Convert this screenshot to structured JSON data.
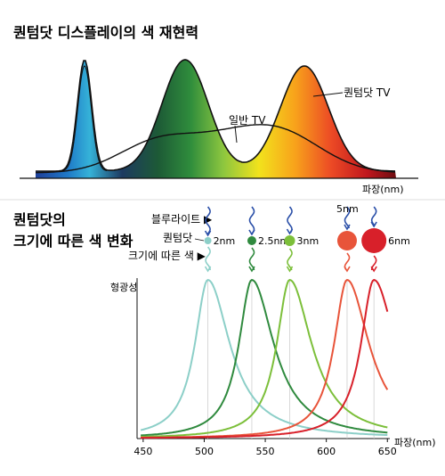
{
  "top_title": "퀀텀닷 디스플레이의 색 재현력",
  "top_xlabel": "파장(nm)",
  "top_labels": {
    "qd": "퀀텀닷 TV",
    "normal": "일반 TV"
  },
  "bottom_title_line1": "퀀텀닷의",
  "bottom_title_line2": "크기에 따른 색 변화",
  "legend": {
    "blue_light": "블루라이트 ▶",
    "quantum_dot": "퀀텀닷",
    "size_color": "크기에 따른 색 ▶"
  },
  "dots": [
    {
      "label": "2nm",
      "color": "#8ccfc8"
    },
    {
      "label": "2.5nm",
      "color": "#2f8a3e"
    },
    {
      "label": "3nm",
      "color": "#7cbf3a"
    },
    {
      "label": "5nm",
      "color": "#e8543a"
    },
    {
      "label": "6nm",
      "color": "#d8202a"
    }
  ],
  "colors": {
    "blue_wave": "#2a4fa8"
  },
  "chart_data": [
    {
      "type": "area",
      "title": "퀀텀닷 디스플레이의 색 재현력",
      "xlabel": "파장(nm)",
      "ylabel": "",
      "series": [
        {
          "name": "퀀텀닷 TV",
          "type": "area",
          "peaks": [
            {
              "position": "blue",
              "height": 0.92
            },
            {
              "position": "green",
              "height": 0.89
            },
            {
              "position": "red",
              "height": 0.84
            }
          ]
        },
        {
          "name": "일반 TV",
          "type": "line",
          "shape": "broad low curve"
        }
      ],
      "grid": false
    },
    {
      "type": "line",
      "title": "퀀텀닷의 크기에 따른 색 변화",
      "xlabel": "파장(nm)",
      "ylabel": "형광성",
      "x_ticks": [
        450,
        500,
        550,
        600,
        650
      ],
      "xlim": [
        445,
        652
      ],
      "series": [
        {
          "name": "2nm",
          "color": "#8ccfc8",
          "peak_nm": 503,
          "relative_peak": 1.0
        },
        {
          "name": "2.5nm",
          "color": "#2f8a3e",
          "peak_nm": 539,
          "relative_peak": 1.0
        },
        {
          "name": "3nm",
          "color": "#7cbf3a",
          "peak_nm": 570,
          "relative_peak": 1.0
        },
        {
          "name": "5nm",
          "color": "#e8543a",
          "peak_nm": 617,
          "relative_peak": 1.0
        },
        {
          "name": "6nm",
          "color": "#d8202a",
          "peak_nm": 639,
          "relative_peak": 1.0
        }
      ],
      "grid": false
    }
  ]
}
